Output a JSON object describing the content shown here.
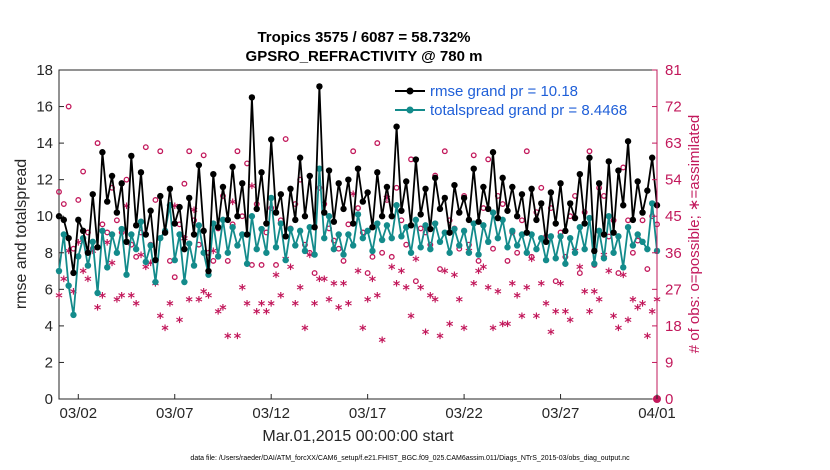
{
  "chart_data": {
    "type": "line",
    "title_line1": "Tropics 3575 / 6087 = 58.732%",
    "title_line2": "GPSRO_REFRACTIVITY @ 780 m",
    "xlabel": "Mar.01,2015 00:00:00 start",
    "ylabel": "rmse and totalspread",
    "y2label": "# of obs: o=possible; ∗=assimilated",
    "footnote": "data file: /Users/raeder/DAI/ATM_forcXX/CAM6_setup/f.e21.FHIST_BGC.f09_025.CAM6assim.011/Diags_NTrS_2015-03/obs_diag_output.nc",
    "xlim": [
      1.0,
      32.0
    ],
    "ylim": [
      0,
      18
    ],
    "y2lim": [
      0,
      81
    ],
    "x_ticks": [
      2,
      7,
      12,
      17,
      22,
      27,
      32
    ],
    "x_tick_labels": [
      "03/02",
      "03/07",
      "03/12",
      "03/17",
      "03/22",
      "03/27",
      "04/01"
    ],
    "y_ticks": [
      "0",
      "2",
      "4",
      "6",
      "8",
      "10",
      "12",
      "14",
      "16",
      "18"
    ],
    "y2_ticks": [
      "0",
      "9",
      "18",
      "27",
      "36",
      "45",
      "54",
      "63",
      "72",
      "81"
    ],
    "x_start": 1.0,
    "x_step": 0.25,
    "legend": [
      {
        "label": "rmse grand pr = 10.18",
        "color": "#000000"
      },
      {
        "label": "totalspread grand pr = 8.4468",
        "color": "#138b8b"
      }
    ],
    "series": [
      {
        "name": "rmse",
        "color": "#000000",
        "values": [
          10.0,
          9.8,
          8.8,
          6.9,
          9.8,
          9.2,
          8.0,
          11.2,
          8.3,
          13.5,
          10.8,
          12.2,
          10.2,
          11.8,
          8.6,
          13.3,
          9.5,
          12.4,
          9.0,
          10.3,
          7.6,
          11.1,
          9.1,
          11.5,
          9.6,
          10.5,
          8.2,
          11.0,
          9.0,
          12.8,
          9.2,
          7.0,
          12.3,
          9.4,
          11.6,
          9.8,
          12.7,
          10.0,
          11.8,
          9.0,
          16.5,
          10.4,
          12.4,
          9.6,
          14.2,
          10.2,
          11.2,
          8.9,
          11.5,
          9.8,
          13.2,
          10.0,
          12.2,
          9.4,
          17.1,
          10.2,
          12.5,
          9.7,
          11.8,
          10.4,
          12.0,
          9.6,
          12.6,
          10.8,
          11.3,
          9.4,
          12.4,
          10.0,
          11.6,
          10.0,
          14.9,
          10.3,
          11.9,
          9.5,
          13.1,
          10.1,
          11.5,
          9.3,
          12.1,
          10.4,
          11.0,
          9.1,
          11.7,
          10.2,
          11.0,
          9.8,
          12.6,
          9.7,
          11.6,
          10.4,
          13.5,
          9.9,
          12.1,
          10.3,
          11.6,
          10.0,
          11.2,
          9.1,
          11.5,
          9.8,
          10.7,
          8.6,
          11.3,
          9.6,
          11.8,
          9.2,
          10.7,
          9.9,
          12.3,
          9.6,
          13.2,
          8.1,
          11.8,
          9.0,
          13.0,
          9.1,
          12.5,
          10.6,
          14.1,
          9.8,
          11.9,
          10.2,
          11.4,
          13.2,
          10.6
        ]
      },
      {
        "name": "totalspread",
        "color": "#138b8b",
        "values": [
          7.0,
          9.0,
          6.2,
          4.6,
          7.8,
          8.8,
          7.3,
          8.6,
          5.8,
          9.2,
          7.2,
          9.0,
          8.0,
          9.3,
          6.8,
          9.0,
          8.2,
          9.7,
          7.5,
          8.4,
          6.4,
          8.8,
          9.2,
          10.6,
          7.6,
          9.0,
          6.4,
          8.5,
          7.3,
          9.5,
          8.0,
          6.8,
          9.6,
          7.8,
          9.8,
          8.0,
          9.4,
          8.4,
          9.0,
          7.4,
          10.0,
          8.2,
          9.3,
          8.0,
          11.0,
          8.3,
          9.6,
          7.6,
          9.3,
          8.4,
          9.2,
          8.1,
          9.4,
          7.9,
          12.6,
          8.8,
          10.0,
          8.2,
          9.0,
          7.9,
          9.0,
          8.4,
          10.1,
          8.8,
          9.2,
          8.1,
          9.6,
          8.7,
          9.5,
          8.8,
          10.6,
          8.9,
          9.4,
          8.0,
          9.8,
          8.3,
          9.5,
          8.2,
          9.6,
          8.6,
          9.1,
          8.0,
          9.3,
          8.4,
          9.2,
          8.0,
          9.6,
          7.9,
          9.5,
          8.6,
          10.2,
          8.8,
          9.8,
          8.3,
          9.2,
          8.4,
          9.0,
          8.0,
          9.0,
          8.2,
          8.8,
          7.6,
          8.9,
          7.7,
          8.9,
          7.4,
          8.8,
          8.0,
          9.4,
          8.2,
          9.9,
          7.4,
          9.2,
          7.7,
          10.0,
          8.0,
          8.9,
          7.2,
          9.4,
          8.4,
          9.0,
          8.6,
          8.2,
          10.7,
          8.1
        ]
      },
      {
        "name": "possible",
        "color": "#c2185b",
        "values": [
          51,
          48,
          72,
          37,
          49,
          56,
          41,
          37,
          63,
          43,
          41,
          52,
          44,
          41,
          54,
          38,
          35,
          41,
          62,
          38,
          49,
          61,
          41,
          34,
          30,
          43,
          53,
          61,
          44,
          38,
          60,
          36,
          34,
          42,
          50,
          34,
          43,
          61,
          45,
          58,
          33,
          48,
          33,
          41,
          47,
          33,
          44,
          64,
          42,
          48,
          54,
          38,
          36,
          31,
          52,
          48,
          42,
          39,
          37,
          34,
          43,
          61,
          47,
          41,
          31,
          35,
          63,
          36,
          49,
          35,
          52,
          44,
          38,
          59,
          29,
          42,
          41,
          38,
          55,
          32,
          61,
          44,
          42,
          37,
          50,
          38,
          60,
          34,
          47,
          59,
          37,
          50,
          48,
          34,
          41,
          36,
          44,
          61,
          35,
          46,
          52,
          40,
          47,
          29,
          41,
          35,
          45,
          50,
          31,
          46,
          61,
          33,
          52,
          50,
          40,
          44,
          31,
          57,
          44,
          36,
          39,
          44,
          32,
          45,
          43
        ]
      },
      {
        "name": "assimilated",
        "color": "#c2185b",
        "values": [
          25,
          29,
          36,
          26,
          38,
          31,
          29,
          36,
          22,
          25,
          38,
          33,
          24,
          25,
          47,
          25,
          23,
          35,
          32,
          33,
          28,
          20,
          17,
          23,
          47,
          19,
          39,
          24,
          46,
          24,
          26,
          25,
          36,
          21,
          22,
          15,
          48,
          15,
          27,
          23,
          52,
          21,
          23,
          21,
          23,
          30,
          25,
          34,
          32,
          23,
          27,
          17,
          35,
          23,
          29,
          29,
          24,
          28,
          22,
          28,
          23,
          50,
          31,
          17,
          24,
          29,
          25,
          14,
          49,
          32,
          28,
          31,
          27,
          20,
          34,
          27,
          16,
          25,
          24,
          15,
          31,
          18,
          30,
          24,
          17,
          36,
          28,
          31,
          32,
          27,
          17,
          26,
          18,
          18,
          28,
          25,
          20,
          27,
          34,
          20,
          28,
          23,
          16,
          21,
          28,
          21,
          19,
          36,
          32,
          26,
          21,
          26,
          24,
          35,
          31,
          20,
          17,
          30,
          19,
          24,
          22,
          23,
          15,
          21,
          24
        ]
      }
    ],
    "endpoint_marker": {
      "x": 32.0,
      "y2": 0,
      "color": "#c2185b"
    }
  }
}
